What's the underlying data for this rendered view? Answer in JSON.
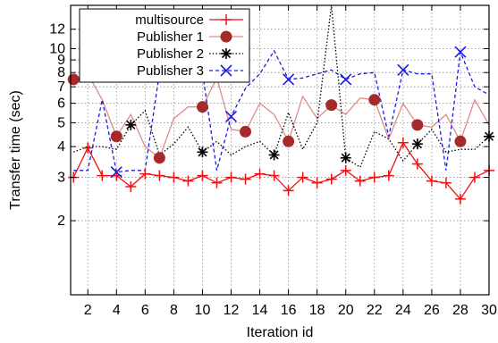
{
  "chart_data": {
    "type": "line",
    "title": "",
    "xlabel": "Iteration id",
    "ylabel": "Transfer time (sec)",
    "xlim": [
      0.8,
      30
    ],
    "ylim": [
      1,
      15
    ],
    "yscale": "log",
    "grid": true,
    "legend_position": "top-left",
    "x_ticks": [
      2,
      4,
      6,
      8,
      10,
      12,
      14,
      16,
      18,
      20,
      22,
      24,
      26,
      28,
      30
    ],
    "y_ticks": [
      2,
      3,
      4,
      5,
      6,
      7,
      8,
      9,
      10,
      12
    ],
    "x": [
      1,
      2,
      3,
      4,
      5,
      6,
      7,
      8,
      9,
      10,
      11,
      12,
      13,
      14,
      15,
      16,
      17,
      18,
      19,
      20,
      21,
      22,
      23,
      24,
      25,
      26,
      27,
      28,
      29,
      30
    ],
    "series": [
      {
        "name": "multisource",
        "color": "#ee1111",
        "dash": "solid",
        "marker": "plus",
        "markers_every": 1,
        "values": [
          3.0,
          3.95,
          3.05,
          3.05,
          2.75,
          3.1,
          3.05,
          3.0,
          2.9,
          3.05,
          2.85,
          3.0,
          2.95,
          3.1,
          3.05,
          2.65,
          3.0,
          2.85,
          2.95,
          3.2,
          2.9,
          3.0,
          3.05,
          4.15,
          3.4,
          2.9,
          2.85,
          2.45,
          3.0,
          3.2
        ]
      },
      {
        "name": "Publisher 1",
        "color": "#e08a8a",
        "marker_color": "#a52a2a",
        "dash": "solid",
        "marker": "circle",
        "markers_x": [
          1,
          4,
          7,
          10,
          13,
          16,
          19,
          22,
          25,
          28
        ],
        "values": [
          7.5,
          7.9,
          6.2,
          4.4,
          5.4,
          4.0,
          3.6,
          5.2,
          5.8,
          5.8,
          7.6,
          4.7,
          4.6,
          6.0,
          5.4,
          4.2,
          6.4,
          5.2,
          5.9,
          5.4,
          6.3,
          6.2,
          4.3,
          6.0,
          4.9,
          4.8,
          5.4,
          4.2,
          6.2,
          4.9
        ]
      },
      {
        "name": "Publisher 2",
        "color": "#000000",
        "dash": "dotted",
        "marker": "star",
        "markers_x": [
          5,
          10,
          15,
          20,
          25,
          30
        ],
        "values": [
          3.8,
          4.0,
          4.0,
          3.9,
          4.9,
          5.6,
          3.7,
          4.1,
          4.8,
          3.8,
          4.2,
          3.7,
          4.0,
          4.2,
          3.7,
          5.5,
          3.9,
          5.0,
          15.0,
          3.6,
          3.3,
          4.6,
          4.3,
          3.5,
          4.1,
          4.7,
          3.8,
          3.9,
          3.9,
          4.4
        ]
      },
      {
        "name": "Publisher 3",
        "color": "#1a1ae6",
        "dash": "dashed",
        "marker": "cross",
        "markers_x": [
          4,
          8,
          12,
          16,
          20,
          24,
          28
        ],
        "values": [
          3.2,
          3.2,
          6.2,
          3.15,
          3.2,
          3.2,
          8.0,
          9.4,
          7.9,
          8.0,
          3.2,
          5.3,
          6.9,
          7.9,
          9.8,
          7.5,
          7.6,
          7.9,
          8.2,
          7.5,
          7.9,
          8.0,
          4.4,
          8.2,
          7.9,
          7.9,
          3.2,
          9.7,
          7.0,
          6.5
        ]
      }
    ]
  }
}
